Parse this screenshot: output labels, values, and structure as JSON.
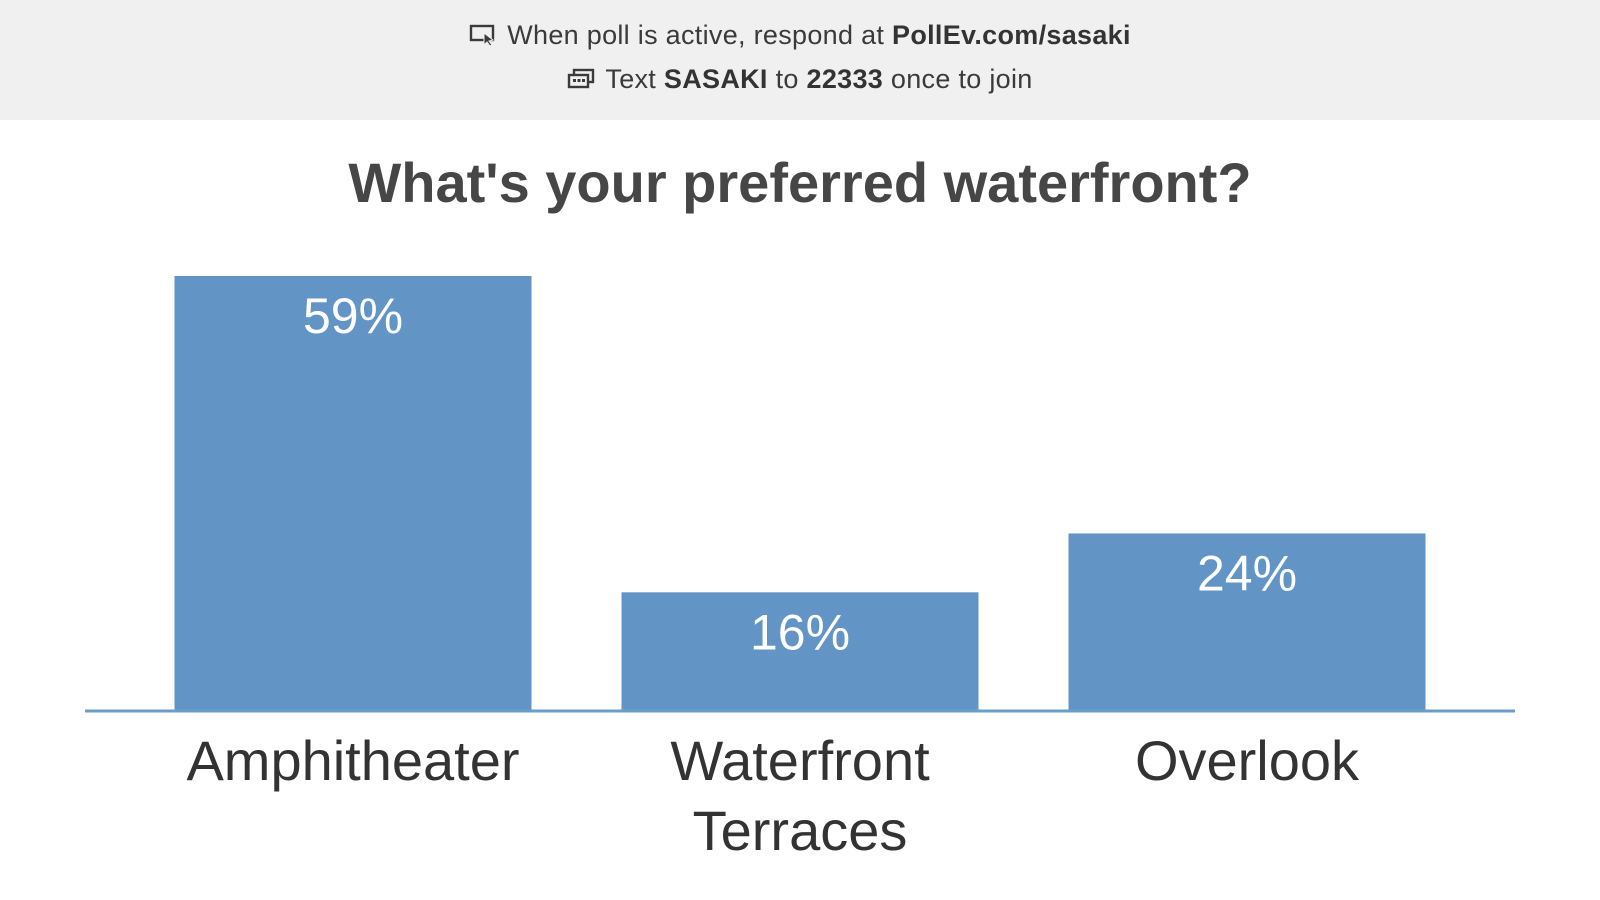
{
  "banner": {
    "line1_prefix": "When poll is active, respond at",
    "line1_url": "PollEv.com/sasaki",
    "line2_text": "Text",
    "line2_keyword": "SASAKI",
    "line2_to": "to",
    "line2_number": "22333",
    "line2_suffix": "once to join",
    "icon1": "screen-pointer-icon",
    "icon2": "sms-message-icon"
  },
  "colors": {
    "bar": "#6295c6",
    "banner_bg": "#f0f0f0",
    "title_text": "#464646"
  },
  "chart_data": {
    "type": "bar",
    "title": "What's your preferred waterfront?",
    "categories": [
      "Amphitheater",
      "Waterfront Terraces",
      "Overlook"
    ],
    "category_lines": [
      [
        "Amphitheater"
      ],
      [
        "Waterfront",
        "Terraces"
      ],
      [
        "Overlook"
      ]
    ],
    "values": [
      59,
      16,
      24
    ],
    "value_labels": [
      "59%",
      "16%",
      "24%"
    ],
    "ylim": [
      0,
      59
    ],
    "grid": false,
    "legend": "none"
  }
}
